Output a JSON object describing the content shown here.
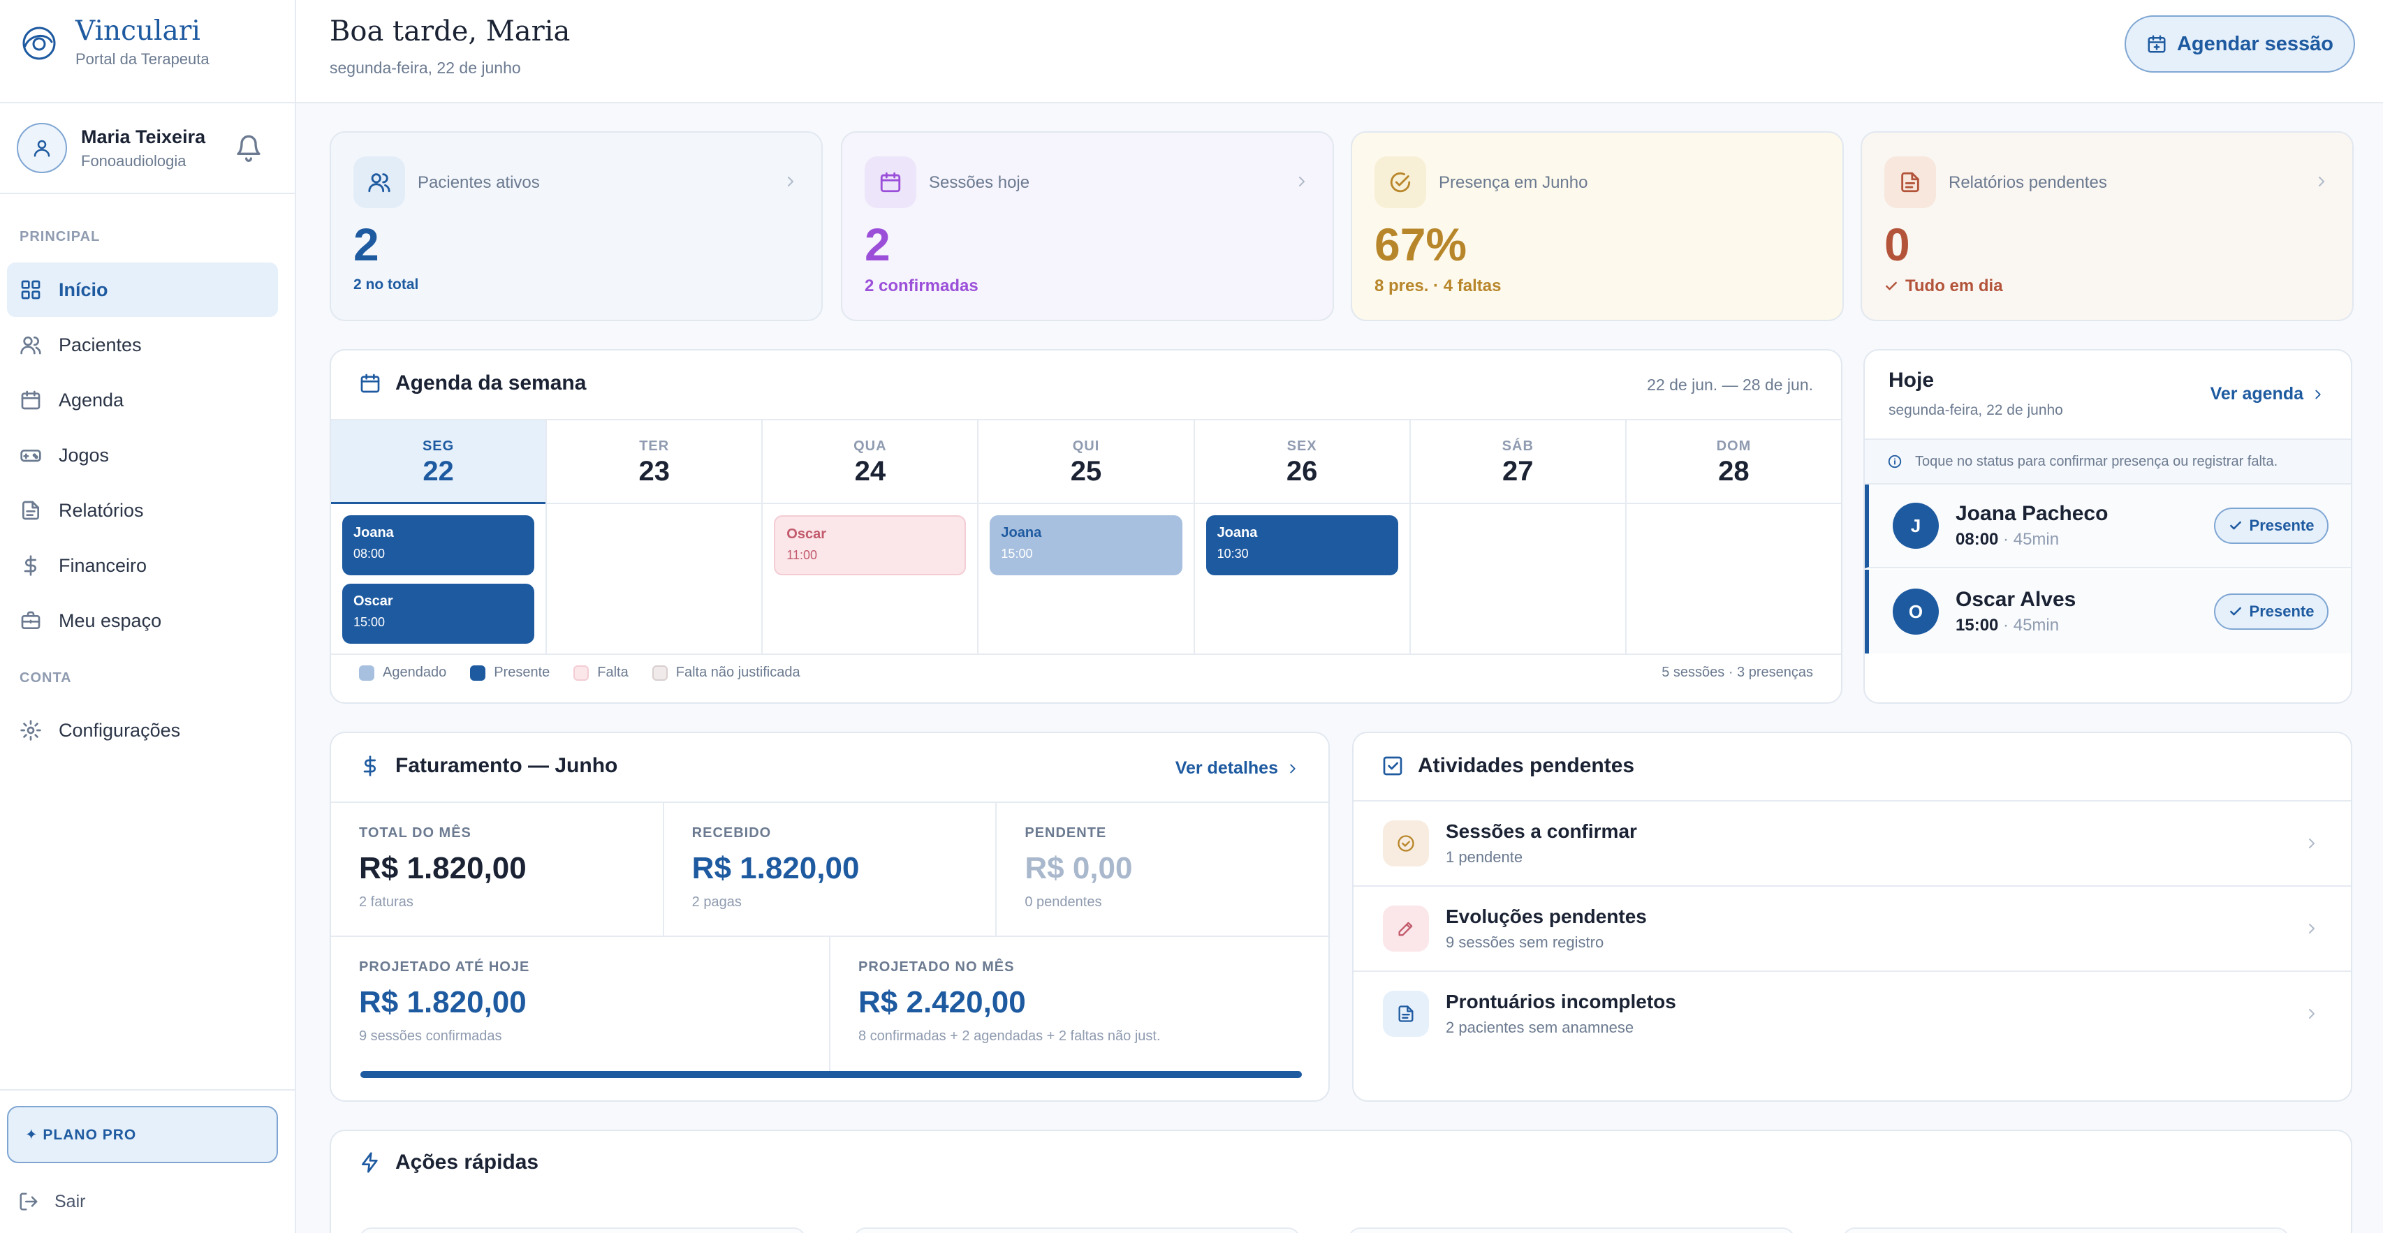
{
  "brand": {
    "name": "Vinculari",
    "subtitle": "Portal da Terapeuta"
  },
  "user": {
    "name": "Maria Teixeira",
    "role": "Fonoaudiologia"
  },
  "sidebar": {
    "section_main": "PRINCIPAL",
    "section_account": "CONTA",
    "items": [
      {
        "label": "Início",
        "icon": "grid-icon",
        "active": true
      },
      {
        "label": "Pacientes",
        "icon": "users-icon"
      },
      {
        "label": "Agenda",
        "icon": "calendar-icon"
      },
      {
        "label": "Jogos",
        "icon": "gamepad-icon"
      },
      {
        "label": "Relatórios",
        "icon": "file-icon"
      },
      {
        "label": "Financeiro",
        "icon": "dollar-icon"
      },
      {
        "label": "Meu espaço",
        "icon": "briefcase-icon"
      }
    ],
    "settings": "Configurações",
    "plan": "✦ PLANO PRO",
    "logout": "Sair"
  },
  "header": {
    "greeting": "Boa tarde, Maria",
    "date": "segunda-feira, 22 de junho",
    "schedule_button": "Agendar sessão"
  },
  "stats": [
    {
      "label": "Pacientes ativos",
      "value": "2",
      "sub": "2 no total",
      "color": "#1e5aa0"
    },
    {
      "label": "Sessões hoje",
      "value": "2",
      "sub": "2 confirmadas",
      "color": "#9b4fd9"
    },
    {
      "label": "Presença em Junho",
      "value": "67%",
      "sub": "8 pres. · 4 faltas",
      "color": "#b8862a"
    },
    {
      "label": "Relatórios pendentes",
      "value": "0",
      "sub": "Tudo em dia",
      "color": "#b3543a"
    }
  ],
  "week": {
    "title": "Agenda da semana",
    "range": "22 de jun. — 28 de jun.",
    "days": [
      {
        "name": "SEG",
        "num": "22"
      },
      {
        "name": "TER",
        "num": "23"
      },
      {
        "name": "QUA",
        "num": "24"
      },
      {
        "name": "QUI",
        "num": "25"
      },
      {
        "name": "SEX",
        "num": "26"
      },
      {
        "name": "SÁB",
        "num": "27"
      },
      {
        "name": "DOM",
        "num": "28"
      }
    ],
    "events": [
      {
        "name": "Joana",
        "time": "08:00",
        "status": "presente"
      },
      {
        "name": "Oscar",
        "time": "15:00",
        "status": "presente"
      },
      {
        "name": "Oscar",
        "time": "11:00",
        "status": "falta"
      },
      {
        "name": "Joana",
        "time": "15:00",
        "status": "agendado"
      },
      {
        "name": "Joana",
        "time": "10:30",
        "status": "presente"
      }
    ],
    "legend": [
      "Agendado",
      "Presente",
      "Falta",
      "Falta não justificada"
    ],
    "summary": "5 sessões · 3 presenças"
  },
  "today": {
    "title": "Hoje",
    "date": "segunda-feira, 22 de junho",
    "link": "Ver agenda",
    "hint": "Toque no status para confirmar presença ou registrar falta.",
    "rows": [
      {
        "initial": "J",
        "name": "Joana Pacheco",
        "time": "08:00",
        "duration": "45min",
        "status": "Presente"
      },
      {
        "initial": "O",
        "name": "Oscar Alves",
        "time": "15:00",
        "duration": "45min",
        "status": "Presente"
      }
    ]
  },
  "billing": {
    "title": "Faturamento — Junho",
    "link": "Ver detalhes",
    "cells": [
      {
        "label": "TOTAL DO MÊS",
        "value": "R$ 1.820,00",
        "sub": "2 faturas"
      },
      {
        "label": "RECEBIDO",
        "value": "R$ 1.820,00",
        "sub": "2 pagas"
      },
      {
        "label": "PENDENTE",
        "value": "R$ 0,00",
        "sub": "0 pendentes"
      },
      {
        "label": "PROJETADO ATÉ HOJE",
        "value": "R$ 1.820,00",
        "sub": "9 sessões confirmadas"
      },
      {
        "label": "PROJETADO NO MÊS",
        "value": "R$ 2.420,00",
        "sub": "8 confirmadas + 2 agendadas + 2 faltas não just."
      }
    ],
    "progress": 1.0
  },
  "pending": {
    "title": "Atividades pendentes",
    "items": [
      {
        "title": "Sessões a confirmar",
        "sub": "1 pendente"
      },
      {
        "title": "Evoluções pendentes",
        "sub": "9 sessões sem registro"
      },
      {
        "title": "Prontuários incompletos",
        "sub": "2 pacientes sem anamnese"
      }
    ]
  },
  "quick": {
    "title": "Ações rápidas"
  }
}
